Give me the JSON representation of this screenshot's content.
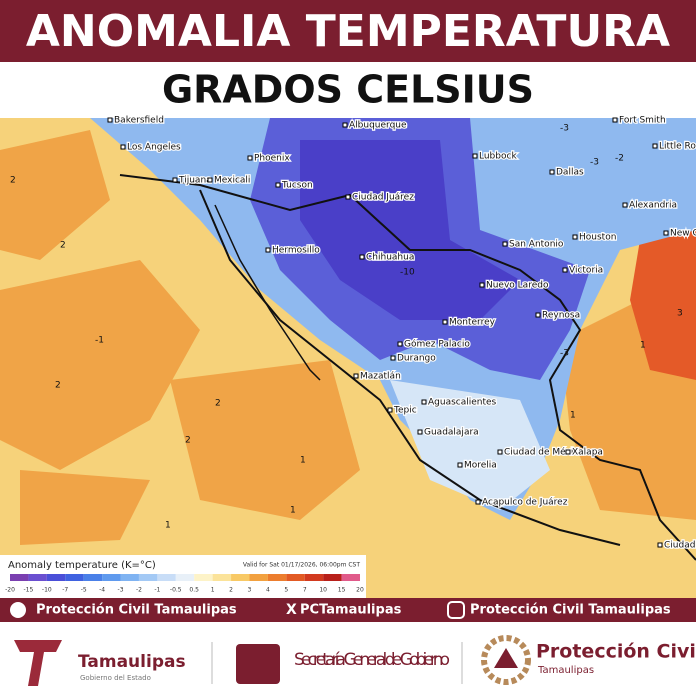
{
  "header": {
    "title": "ANOMALIA TEMPERATURA",
    "subtitle": "GRADOS CELSIUS"
  },
  "map": {
    "cities": [
      "Bakersfield",
      "Los Angeles",
      "Phoenix",
      "Albuquerque",
      "Lubbock",
      "Fort Smith",
      "Little Rock",
      "Tijuana",
      "Mexicali",
      "Tucson",
      "Ciudad Juárez",
      "Dallas",
      "Alexandria",
      "Hermosillo",
      "San Antonio",
      "Houston",
      "New Orleans",
      "Chihuahua",
      "Nuevo Laredo",
      "Victoria",
      "Reynosa",
      "Monterrey",
      "Gómez Palacio",
      "Durango",
      "Mazatlán",
      "Aguascalientes",
      "Tepic",
      "Guadalajara",
      "Ciudad de México",
      "Xalapa",
      "Morelia",
      "Acapulco de Juárez",
      "Ciudad Guatemala"
    ],
    "contour_labels": [
      "-3",
      "-3",
      "-2",
      "-1",
      "2",
      "2",
      "2",
      "2",
      "2",
      "1",
      "1",
      "1",
      "-10",
      "-3",
      "3",
      "1",
      "1"
    ]
  },
  "legend": {
    "title": "Anomaly temperature (K=°C)",
    "valid": "Valid for Sat 01/17/2026, 06:00pm CST",
    "ticks": [
      -20,
      -15,
      -10,
      -7,
      -5,
      -4,
      -3,
      -2,
      -1,
      -0.5,
      0.5,
      1,
      2,
      3,
      4,
      5,
      7,
      10,
      15,
      20
    ],
    "colors": [
      "#7a3fb0",
      "#6a4fd0",
      "#4a4fd8",
      "#3f62e0",
      "#4a80e8",
      "#5f9aee",
      "#7fb3f2",
      "#a3c9f5",
      "#c8ddf7",
      "#e8f0f8",
      "#fdf3c8",
      "#fbe39a",
      "#f8c965",
      "#f2a13f",
      "#ec7d2e",
      "#e25a24",
      "#d23a1f",
      "#b8201a",
      "#e05a8a"
    ]
  },
  "social": {
    "facebook": "Protección Civil Tamaulipas",
    "x": "PCTamaulipas",
    "instagram": "Protección Civil Tamaulipas"
  },
  "footer": {
    "state": "Tamaulipas",
    "state_sub": "Gobierno del Estado",
    "secretaria": "Secretaría General de Gobierno",
    "pc": "Protección Civil",
    "pc_sub": "Tamaulipas"
  }
}
